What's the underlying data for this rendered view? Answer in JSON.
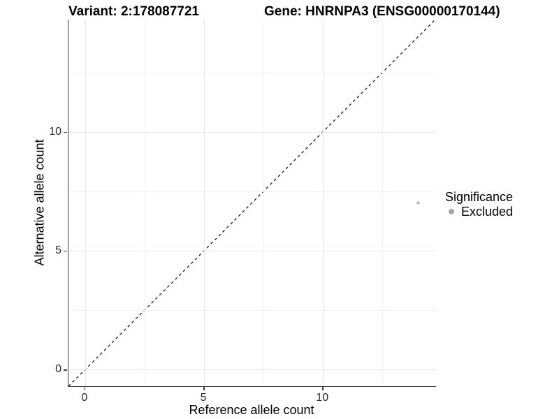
{
  "header": {
    "variant_title": "Variant: 2:178087721",
    "gene_title": "Gene: HNRNPA3 (ENSG00000170144)"
  },
  "legend": {
    "title": "Significance",
    "items": [
      {
        "label": "Excluded",
        "marker": "circle-icon",
        "color": "#a6a6a6"
      }
    ]
  },
  "chart_data": {
    "type": "scatter",
    "title": "Variant: 2:178087721  /  Gene: HNRNPA3 (ENSG00000170144)",
    "xlabel": "Reference allele count",
    "ylabel": "Alternative allele count",
    "xlim": [
      -0.7,
      14.75
    ],
    "ylim": [
      -0.7,
      14.72
    ],
    "x_ticks": [
      0,
      5,
      10
    ],
    "y_ticks": [
      0,
      5,
      10
    ],
    "minor_ticks": [
      2.5,
      7.5,
      12.5
    ],
    "grid": true,
    "legend_position": "right",
    "series": [
      {
        "name": "Excluded",
        "marker": "point",
        "color": "#c6c6c6",
        "points": [
          {
            "x": 14,
            "y": 7
          }
        ]
      }
    ],
    "reference_line": {
      "type": "identity y=x",
      "style": "dashed",
      "color": "#1a1a1a"
    }
  },
  "colors": {
    "background": "#ffffff",
    "axis_line": "#3d3d3d",
    "grid_major": "#e8e8e8",
    "grid_minor": "#f3f3f3",
    "point": "#c6c6c6",
    "legend_marker": "#a6a6a6"
  }
}
